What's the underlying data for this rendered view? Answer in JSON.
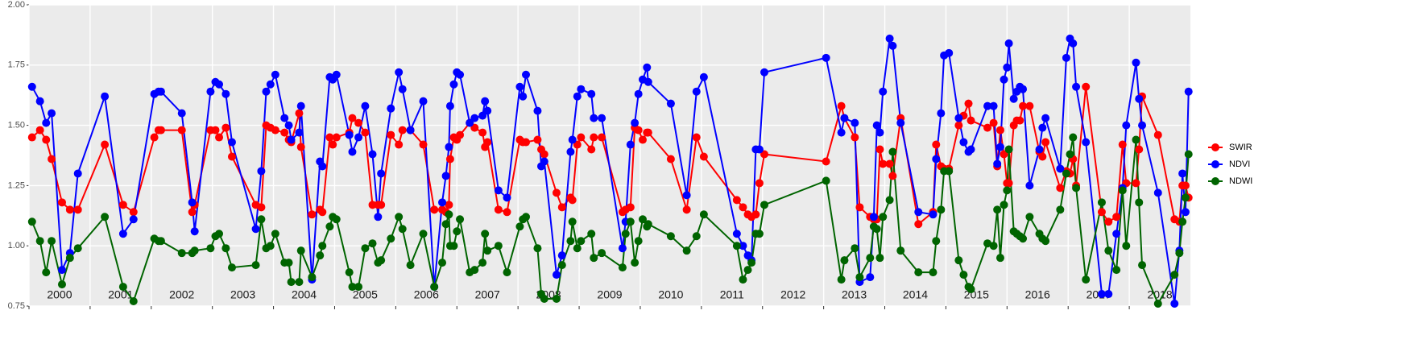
{
  "chart_data": {
    "type": "line",
    "x": [
      2000.05,
      2000.18,
      2000.28,
      2000.37,
      2000.54,
      2000.67,
      2000.8,
      2001.24,
      2001.54,
      2001.71,
      2002.05,
      2002.12,
      2002.16,
      2002.5,
      2002.67,
      2002.71,
      2002.97,
      2003.05,
      2003.11,
      2003.22,
      2003.32,
      2003.71,
      2003.8,
      2003.88,
      2003.95,
      2004.03,
      2004.18,
      2004.25,
      2004.29,
      2004.42,
      2004.45,
      2004.63,
      2004.76,
      2004.8,
      2004.92,
      2004.97,
      2005.03,
      2005.24,
      2005.29,
      2005.39,
      2005.5,
      2005.62,
      2005.71,
      2005.76,
      2005.92,
      2006.05,
      2006.11,
      2006.24,
      2006.45,
      2006.63,
      2006.76,
      2006.82,
      2006.87,
      2006.89,
      2006.95,
      2007.0,
      2007.05,
      2007.21,
      2007.29,
      2007.42,
      2007.46,
      2007.5,
      2007.68,
      2007.82,
      2008.03,
      2008.08,
      2008.13,
      2008.32,
      2008.38,
      2008.43,
      2008.63,
      2008.72,
      2008.86,
      2008.89,
      2008.97,
      2009.03,
      2009.2,
      2009.24,
      2009.37,
      2009.71,
      2009.76,
      2009.84,
      2009.91,
      2009.97,
      2010.04,
      2010.11,
      2010.13,
      2010.5,
      2010.76,
      2010.92,
      2011.04,
      2011.58,
      2011.68,
      2011.76,
      2011.82,
      2011.89,
      2011.95,
      2012.03,
      2013.04,
      2013.29,
      2013.34,
      2013.51,
      2013.59,
      2013.76,
      2013.82,
      2013.87,
      2013.92,
      2013.97,
      2014.08,
      2014.13,
      2014.26,
      2014.55,
      2014.79,
      2014.84,
      2014.92,
      2014.97,
      2015.05,
      2015.21,
      2015.29,
      2015.37,
      2015.41,
      2015.68,
      2015.78,
      2015.84,
      2015.89,
      2015.95,
      2016.0,
      2016.03,
      2016.11,
      2016.16,
      2016.21,
      2016.26,
      2016.37,
      2016.53,
      2016.58,
      2016.63,
      2016.87,
      2016.97,
      2017.03,
      2017.08,
      2017.13,
      2017.29,
      2017.55,
      2017.66,
      2017.79,
      2017.89,
      2017.95,
      2018.11,
      2018.16,
      2018.21,
      2018.47,
      2018.74,
      2018.82,
      2018.87,
      2018.92,
      2018.97
    ],
    "series": [
      {
        "name": "SWIR",
        "color": "#ff0000",
        "values": [
          1.45,
          1.48,
          1.44,
          1.36,
          1.18,
          1.15,
          1.15,
          1.42,
          1.17,
          1.14,
          1.45,
          1.48,
          1.48,
          1.48,
          1.14,
          1.17,
          1.48,
          1.48,
          1.45,
          1.49,
          1.37,
          1.17,
          1.16,
          1.5,
          1.49,
          1.48,
          1.47,
          1.44,
          1.43,
          1.55,
          1.41,
          1.13,
          1.15,
          1.14,
          1.45,
          1.42,
          1.45,
          1.47,
          1.53,
          1.51,
          1.47,
          1.17,
          1.17,
          1.17,
          1.46,
          1.42,
          1.48,
          1.48,
          1.42,
          1.15,
          1.15,
          1.14,
          1.17,
          1.36,
          1.45,
          1.44,
          1.46,
          1.51,
          1.49,
          1.47,
          1.41,
          1.43,
          1.15,
          1.14,
          1.44,
          1.43,
          1.43,
          1.44,
          1.4,
          1.38,
          1.22,
          1.16,
          1.2,
          1.19,
          1.42,
          1.45,
          1.4,
          1.45,
          1.45,
          1.14,
          1.15,
          1.16,
          1.49,
          1.48,
          1.44,
          1.47,
          1.47,
          1.36,
          1.15,
          1.45,
          1.37,
          1.19,
          1.16,
          1.13,
          1.12,
          1.13,
          1.26,
          1.38,
          1.35,
          1.58,
          1.53,
          1.45,
          1.16,
          1.12,
          1.11,
          1.11,
          1.4,
          1.34,
          1.34,
          1.29,
          1.53,
          1.09,
          1.14,
          1.42,
          1.33,
          1.32,
          1.32,
          1.5,
          1.54,
          1.59,
          1.52,
          1.49,
          1.51,
          1.33,
          1.48,
          1.38,
          1.26,
          1.26,
          1.5,
          1.52,
          1.52,
          1.58,
          1.58,
          1.39,
          1.37,
          1.43,
          1.24,
          1.31,
          1.3,
          1.36,
          1.25,
          1.66,
          1.14,
          1.1,
          1.12,
          1.42,
          1.26,
          1.26,
          1.4,
          1.62,
          1.46,
          1.11,
          1.1,
          1.25,
          1.25,
          1.2
        ]
      },
      {
        "name": "NDVI",
        "color": "#0000ff",
        "values": [
          1.66,
          1.6,
          1.51,
          1.55,
          0.9,
          0.97,
          1.3,
          1.62,
          1.05,
          1.11,
          1.63,
          1.64,
          1.64,
          1.55,
          1.18,
          1.06,
          1.64,
          1.68,
          1.67,
          1.63,
          1.43,
          1.07,
          1.31,
          1.64,
          1.67,
          1.71,
          1.53,
          1.5,
          1.44,
          1.47,
          1.58,
          0.86,
          1.35,
          1.33,
          1.7,
          1.69,
          1.71,
          1.46,
          1.39,
          1.45,
          1.58,
          1.38,
          1.12,
          1.3,
          1.57,
          1.72,
          1.65,
          1.48,
          1.6,
          0.83,
          1.18,
          1.29,
          1.41,
          1.58,
          1.67,
          1.72,
          1.71,
          1.51,
          1.53,
          1.54,
          1.6,
          1.56,
          1.23,
          1.2,
          1.66,
          1.62,
          1.71,
          1.56,
          1.33,
          1.35,
          0.88,
          0.96,
          1.39,
          1.44,
          1.62,
          1.65,
          1.63,
          1.53,
          1.53,
          0.99,
          1.1,
          1.42,
          1.51,
          1.63,
          1.69,
          1.74,
          1.68,
          1.59,
          1.21,
          1.64,
          1.7,
          1.05,
          1.0,
          0.96,
          0.94,
          1.4,
          1.4,
          1.72,
          1.78,
          1.47,
          1.53,
          1.51,
          0.85,
          0.87,
          1.12,
          1.5,
          1.47,
          1.64,
          1.86,
          1.83,
          1.51,
          1.14,
          1.13,
          1.36,
          1.55,
          1.79,
          1.8,
          1.53,
          1.43,
          1.39,
          1.4,
          1.58,
          1.58,
          1.34,
          1.41,
          1.69,
          1.74,
          1.84,
          1.61,
          1.64,
          1.66,
          1.65,
          1.25,
          1.4,
          1.49,
          1.53,
          1.32,
          1.78,
          1.86,
          1.84,
          1.66,
          1.43,
          0.8,
          0.8,
          1.05,
          1.24,
          1.5,
          1.76,
          1.61,
          1.5,
          1.22,
          0.76,
          0.98,
          1.3,
          1.14,
          1.64
        ]
      },
      {
        "name": "NDWI",
        "color": "#006400",
        "values": [
          1.1,
          1.02,
          0.89,
          1.02,
          0.84,
          0.95,
          0.99,
          1.12,
          0.83,
          0.77,
          1.03,
          1.02,
          1.02,
          0.97,
          0.97,
          0.98,
          0.99,
          1.04,
          1.05,
          0.99,
          0.91,
          0.92,
          1.11,
          0.99,
          1.0,
          1.05,
          0.93,
          0.93,
          0.85,
          0.85,
          0.98,
          0.87,
          0.96,
          1.0,
          1.08,
          1.12,
          1.11,
          0.89,
          0.83,
          0.83,
          0.99,
          1.01,
          0.93,
          0.94,
          1.03,
          1.12,
          1.07,
          0.92,
          1.05,
          0.83,
          0.93,
          1.09,
          1.13,
          1.0,
          1.0,
          1.06,
          1.11,
          0.89,
          0.9,
          0.93,
          1.05,
          0.98,
          1.0,
          0.89,
          1.08,
          1.11,
          1.12,
          0.99,
          0.8,
          0.78,
          0.78,
          0.92,
          1.02,
          1.1,
          0.99,
          1.02,
          1.05,
          0.95,
          0.97,
          0.91,
          1.05,
          1.1,
          0.93,
          1.02,
          1.11,
          1.08,
          1.09,
          1.04,
          0.98,
          1.04,
          1.13,
          1.0,
          0.86,
          0.9,
          0.93,
          1.05,
          1.05,
          1.17,
          1.27,
          0.86,
          0.94,
          0.99,
          0.87,
          0.95,
          1.08,
          1.07,
          0.95,
          1.12,
          1.19,
          1.39,
          0.98,
          0.89,
          0.89,
          1.02,
          1.15,
          1.31,
          1.31,
          0.94,
          0.88,
          0.83,
          0.82,
          1.01,
          1.0,
          1.15,
          0.95,
          1.17,
          1.23,
          1.4,
          1.06,
          1.05,
          1.04,
          1.03,
          1.12,
          1.05,
          1.03,
          1.02,
          1.15,
          1.3,
          1.38,
          1.45,
          1.24,
          0.86,
          1.18,
          0.98,
          0.9,
          1.23,
          1.0,
          1.44,
          1.18,
          0.92,
          0.76,
          0.88,
          0.97,
          1.1,
          1.2,
          1.38
        ]
      }
    ],
    "xlim": [
      2000,
      2019
    ],
    "xticks": [
      2000,
      2001,
      2002,
      2003,
      2004,
      2005,
      2006,
      2007,
      2008,
      2009,
      2010,
      2011,
      2012,
      2013,
      2014,
      2015,
      2016,
      2017,
      2018
    ],
    "ylim": [
      0.75,
      2.0
    ],
    "yticks": [
      0.75,
      {
        "value": 1,
        "label": "1.00"
      },
      1.25,
      {
        "value": 1.5,
        "label": "1.50"
      },
      1.75,
      {
        "value": 2,
        "label": "2.00"
      }
    ],
    "grid": true
  }
}
